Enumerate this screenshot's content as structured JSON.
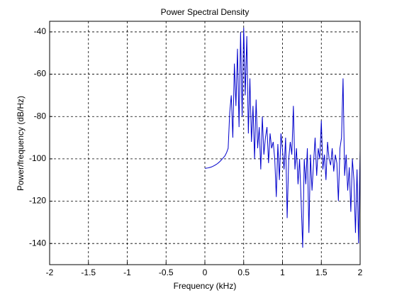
{
  "chart_data": {
    "type": "line",
    "title": "Power Spectral Density",
    "x_label": "Frequency (kHz)",
    "y_label": "Power/frequency (dB/Hz)",
    "xlim": [
      -2,
      2
    ],
    "xticks": [
      -2,
      -1.5,
      -1,
      -0.5,
      0,
      0.5,
      1,
      1.5,
      2
    ],
    "ylim": [
      -150,
      -35
    ],
    "yticks": [
      -140,
      -120,
      -100,
      -80,
      -60,
      -40
    ],
    "grid": true,
    "x": [
      0,
      0.02,
      0.04,
      0.06,
      0.08,
      0.1,
      0.12,
      0.14,
      0.16,
      0.18,
      0.2,
      0.22,
      0.24,
      0.26,
      0.28,
      0.3,
      0.32,
      0.34,
      0.36,
      0.38,
      0.4,
      0.42,
      0.44,
      0.46,
      0.48,
      0.5,
      0.52,
      0.54,
      0.56,
      0.58,
      0.6,
      0.62,
      0.64,
      0.66,
      0.68,
      0.7,
      0.72,
      0.74,
      0.76,
      0.78,
      0.8,
      0.82,
      0.84,
      0.86,
      0.88,
      0.9,
      0.92,
      0.94,
      0.96,
      0.98,
      1,
      1.02,
      1.04,
      1.06,
      1.08,
      1.1,
      1.12,
      1.14,
      1.16,
      1.18,
      1.2,
      1.22,
      1.24,
      1.26,
      1.28,
      1.3,
      1.32,
      1.34,
      1.36,
      1.38,
      1.4,
      1.42,
      1.44,
      1.46,
      1.48,
      1.5,
      1.52,
      1.54,
      1.56,
      1.58,
      1.6,
      1.62,
      1.64,
      1.66,
      1.68,
      1.7,
      1.72,
      1.74,
      1.76,
      1.78,
      1.8,
      1.82,
      1.84,
      1.86,
      1.88,
      1.9,
      1.92,
      1.94,
      1.96,
      1.98,
      2
    ],
    "series": [
      {
        "color": "#0000cc",
        "values": [
          -104.5,
          -104.4,
          -104.3,
          -104.1,
          -103.9,
          -103.6,
          -103.2,
          -102.8,
          -102.3,
          -101.7,
          -101,
          -100.2,
          -99.4,
          -98.5,
          -97,
          -95,
          -78,
          -70,
          -90,
          -55,
          -75,
          -48,
          -85,
          -40,
          -80,
          -38,
          -70,
          -42,
          -88,
          -62,
          -92,
          -75,
          -100,
          -72,
          -95,
          -85,
          -105,
          -80,
          -98,
          -90,
          -85,
          -102,
          -88,
          -95,
          -92,
          -100,
          -118,
          -93,
          -110,
          -88,
          -96,
          -105,
          -90,
          -128,
          -100,
          -92,
          -98,
          -75,
          -105,
          -95,
          -112,
          -100,
          -120,
          -142,
          -100,
          -112,
          -95,
          -135,
          -98,
          -115,
          -102,
          -90,
          -108,
          -95,
          -100,
          -82,
          -105,
          -98,
          -110,
          -92,
          -100,
          -103,
          -95,
          -106,
          -98,
          -102,
          -120,
          -95,
          -90,
          -62,
          -108,
          -98,
          -115,
          -104,
          -125,
          -100,
          -110,
          -135,
          -105,
          -140,
          -96
        ]
      }
    ]
  }
}
